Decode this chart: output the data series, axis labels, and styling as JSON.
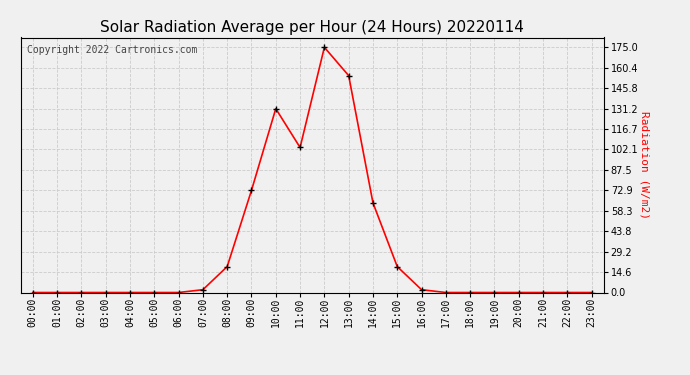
{
  "title": "Solar Radiation Average per Hour (24 Hours) 20220114",
  "copyright_text": "Copyright 2022 Cartronics.com",
  "ylabel": "Radiation (W/m2)",
  "ylabel_color": "#ff0000",
  "line_color": "#ff0000",
  "marker_color": "#000000",
  "background_color": "#f0f0f0",
  "plot_bg_color": "#f0f0f0",
  "hours": [
    0,
    1,
    2,
    3,
    4,
    5,
    6,
    7,
    8,
    9,
    10,
    11,
    12,
    13,
    14,
    15,
    16,
    17,
    18,
    19,
    20,
    21,
    22,
    23
  ],
  "values": [
    0.0,
    0.0,
    0.0,
    0.0,
    0.0,
    0.0,
    0.0,
    2.0,
    18.5,
    72.9,
    131.2,
    103.5,
    175.0,
    154.8,
    64.0,
    18.5,
    2.0,
    0.0,
    0.0,
    0.0,
    0.0,
    0.0,
    0.0,
    0.0
  ],
  "yticks": [
    0.0,
    14.6,
    29.2,
    43.8,
    58.3,
    72.9,
    87.5,
    102.1,
    116.7,
    131.2,
    145.8,
    160.4,
    175.0
  ],
  "ylim": [
    0,
    182
  ],
  "xlim": [
    -0.5,
    23.5
  ],
  "grid_color": "#cccccc",
  "title_fontsize": 11,
  "tick_fontsize": 7,
  "copyright_fontsize": 7,
  "border_color": "#000000"
}
